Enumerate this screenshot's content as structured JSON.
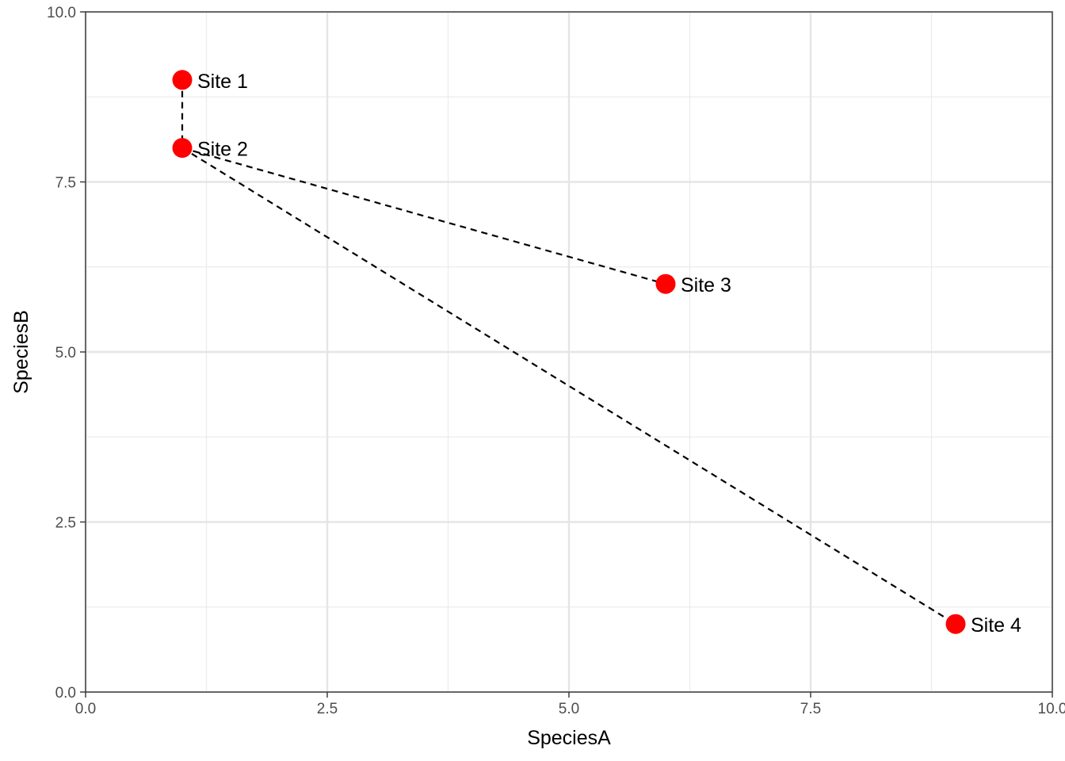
{
  "chart_data": {
    "type": "scatter",
    "title": "",
    "xlabel": "SpeciesA",
    "ylabel": "SpeciesB",
    "xlim": [
      0,
      10
    ],
    "ylim": [
      0,
      10
    ],
    "x_major_ticks": [
      0,
      2.5,
      5,
      7.5,
      10
    ],
    "y_major_ticks": [
      0,
      2.5,
      5,
      7.5,
      10
    ],
    "x_tick_labels": [
      "0.0",
      "2.5",
      "5.0",
      "7.5",
      "10.0"
    ],
    "y_tick_labels": [
      "0.0",
      "2.5",
      "5.0",
      "7.5",
      "10.0"
    ],
    "x_minor_ticks": [
      1.25,
      3.75,
      6.25,
      8.75
    ],
    "y_minor_ticks": [
      1.25,
      3.75,
      6.25,
      8.75
    ],
    "grid": true,
    "point_color": "#ff0000",
    "segment_color": "#000000",
    "points": [
      {
        "label": "Site 1",
        "x": 1,
        "y": 9
      },
      {
        "label": "Site 2",
        "x": 1,
        "y": 8
      },
      {
        "label": "Site 3",
        "x": 6,
        "y": 6
      },
      {
        "label": "Site 4",
        "x": 9,
        "y": 1
      }
    ],
    "segments": [
      {
        "from": "Site 1",
        "to": "Site 2"
      },
      {
        "from": "Site 2",
        "to": "Site 3"
      },
      {
        "from": "Site 2",
        "to": "Site 4"
      }
    ]
  }
}
